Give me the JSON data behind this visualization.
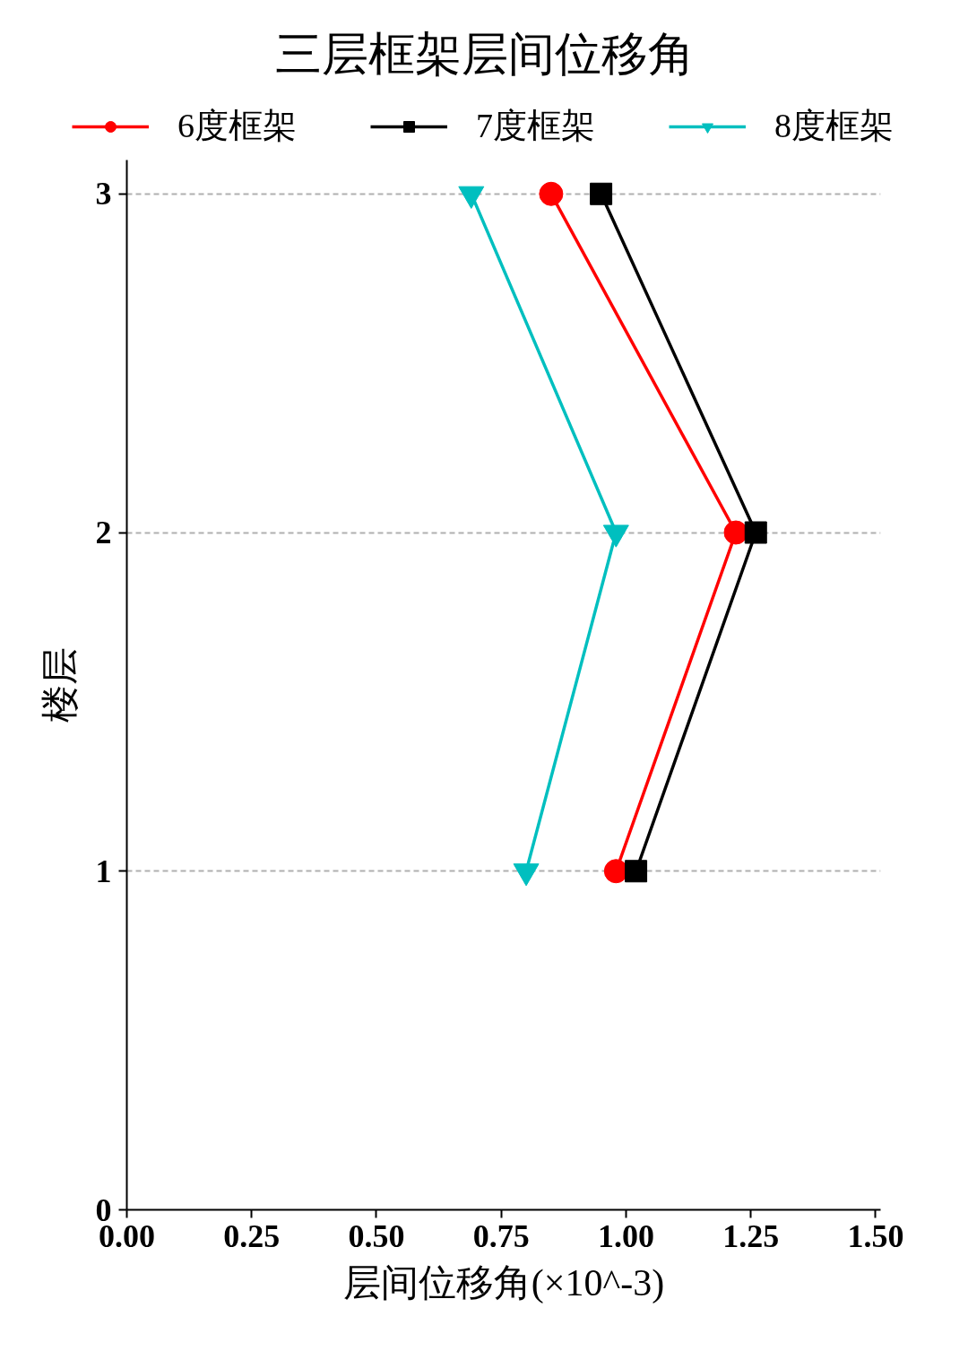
{
  "chart_data": {
    "type": "line",
    "title": "三层框架层间位移角",
    "xlabel": "层间位移角(×10^-3)",
    "ylabel": "楼层",
    "xlim": [
      0,
      1.51
    ],
    "xticks": [
      {
        "value": 0,
        "label": "0.00"
      },
      {
        "value": 0.25,
        "label": "0.25"
      },
      {
        "value": 0.5,
        "label": "0.50"
      },
      {
        "value": 0.75,
        "label": "0.75"
      },
      {
        "value": 1,
        "label": "1.00"
      },
      {
        "value": 1.25,
        "label": "1.25"
      },
      {
        "value": 1.5,
        "label": "1.50"
      }
    ],
    "ylim": [
      0,
      3.1
    ],
    "yticks": [
      0,
      1,
      2,
      3
    ],
    "series": [
      {
        "name": "6度框架",
        "color": "#ff0000",
        "marker": "circle",
        "x": [
          0.98,
          1.22,
          0.85
        ],
        "values": [
          1,
          2,
          3
        ]
      },
      {
        "name": "7度框架",
        "color": "#000000",
        "marker": "square",
        "x": [
          1.02,
          1.26,
          0.95
        ],
        "values": [
          1,
          2,
          3
        ]
      },
      {
        "name": "8度框架",
        "color": "#00bfbf",
        "marker": "triangle_down",
        "x": [
          0.8,
          0.98,
          0.69
        ],
        "values": [
          1,
          2,
          3
        ]
      }
    ],
    "grid": "y",
    "legend": "top",
    "line_style": "solid"
  }
}
